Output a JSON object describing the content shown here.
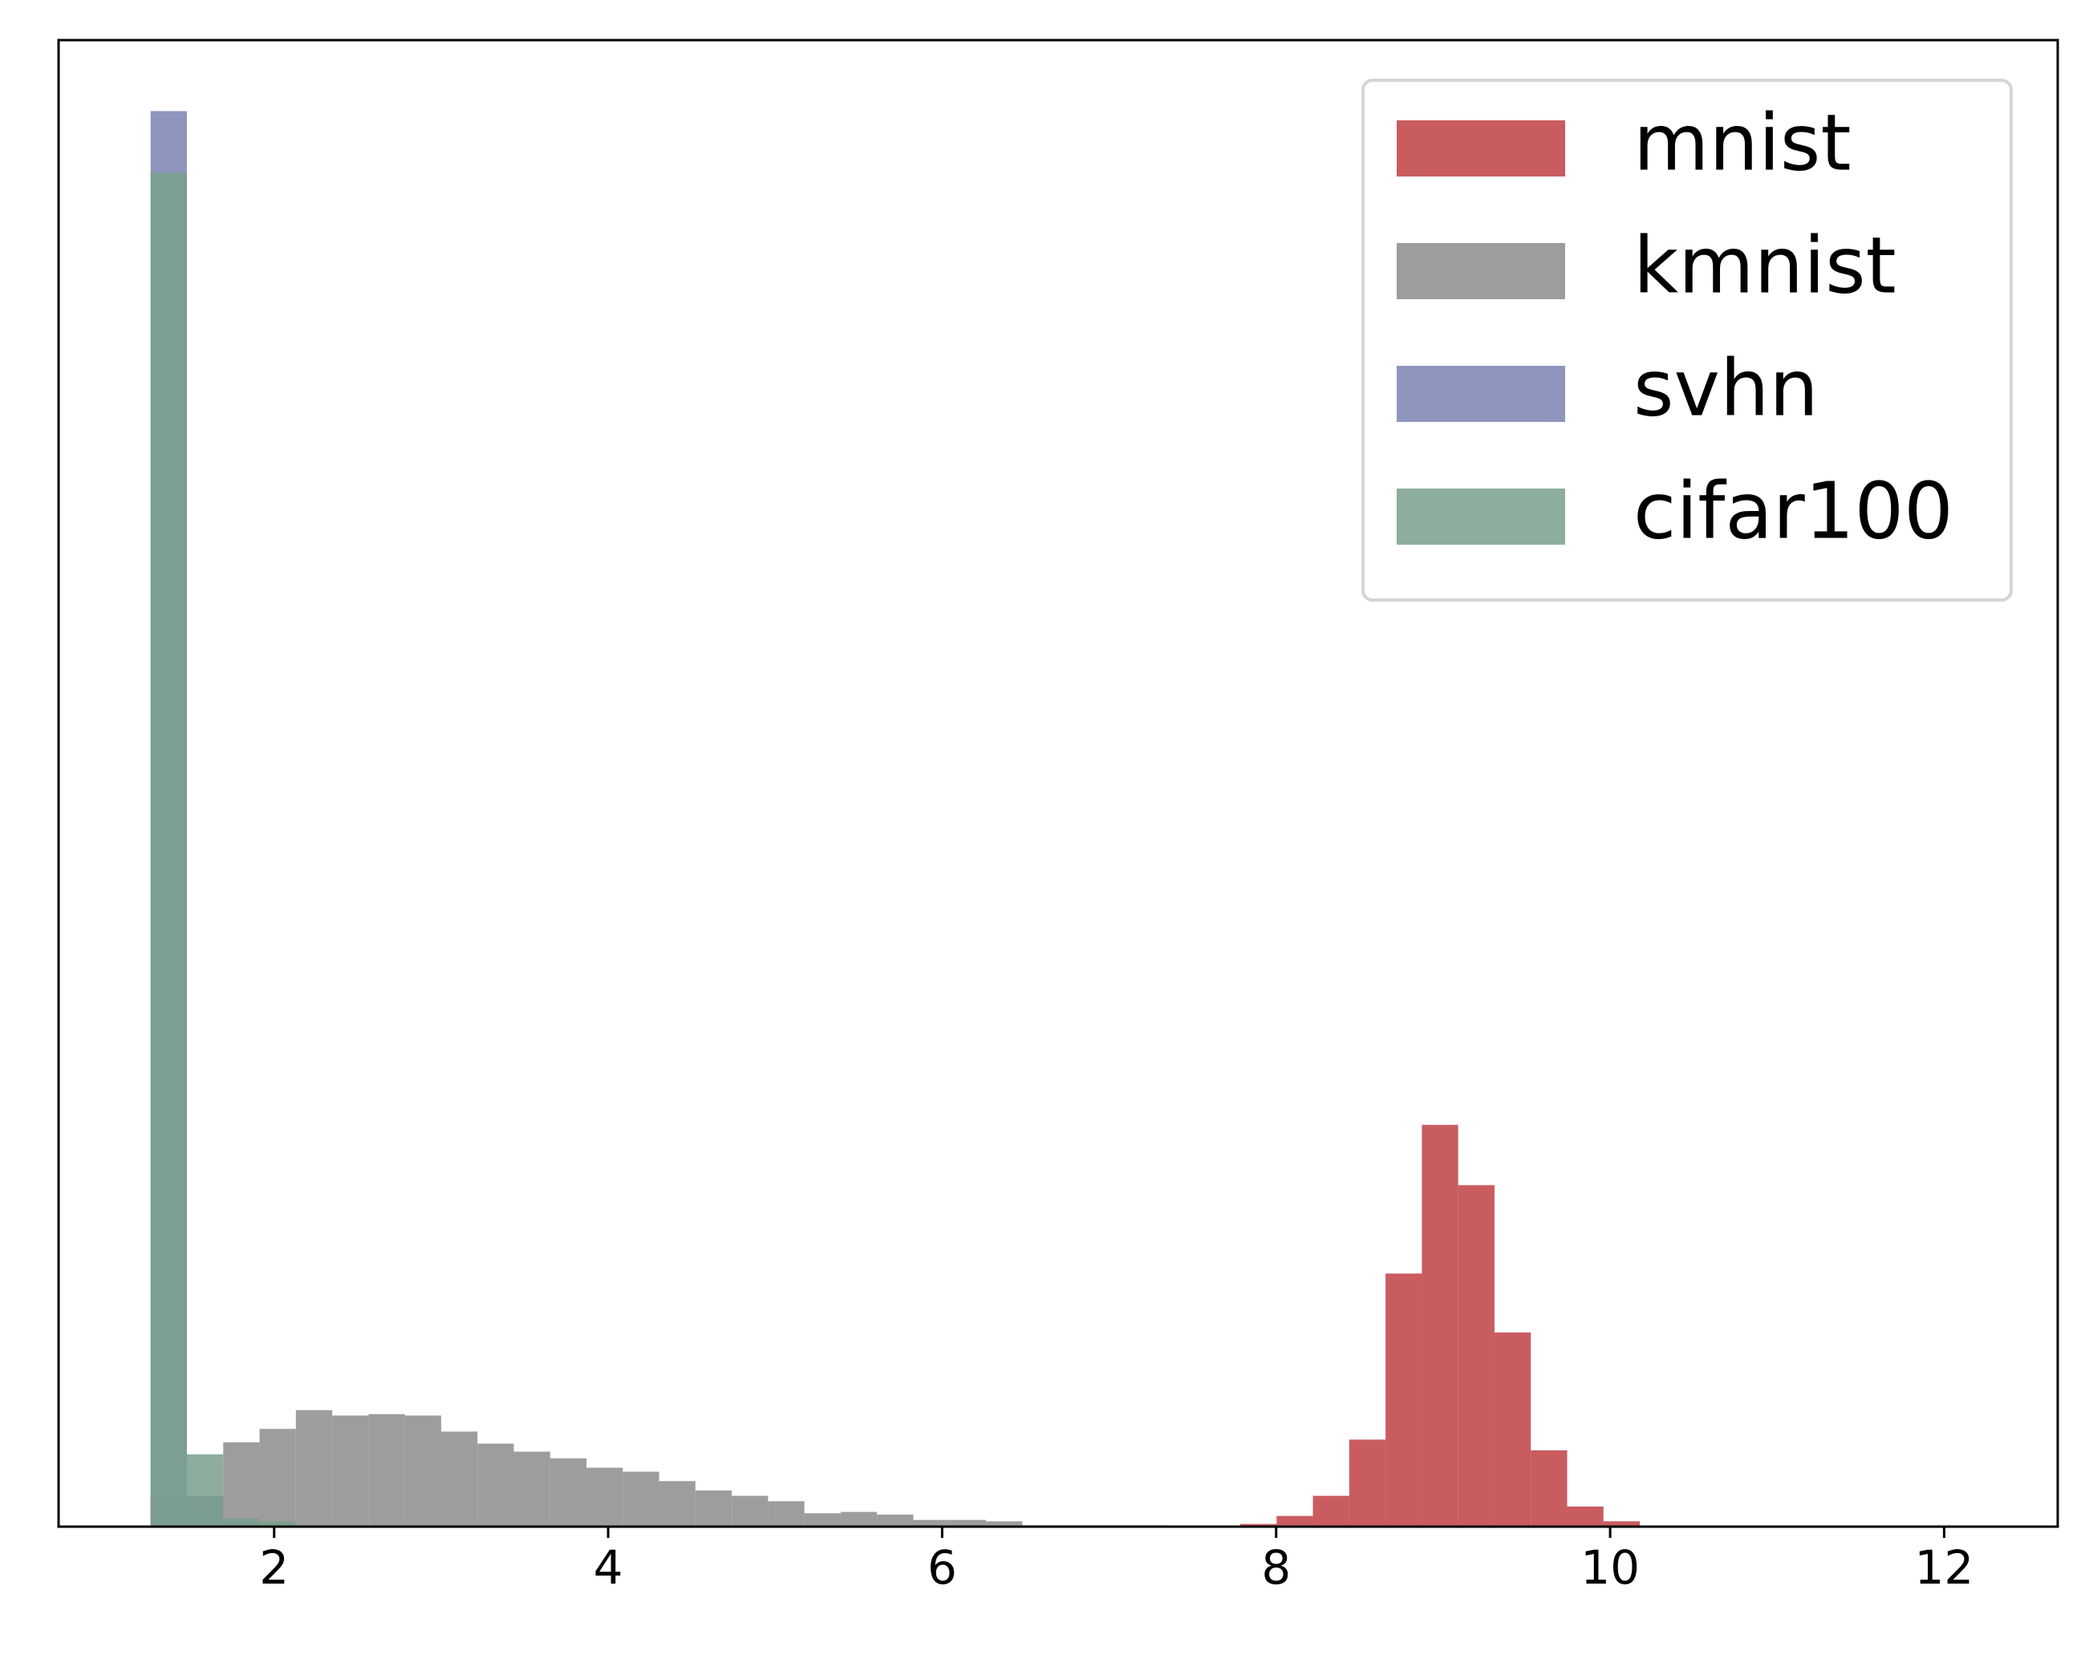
{
  "chart_data": {
    "type": "histogram",
    "bins": [
      1.26,
      1.4775,
      1.695,
      1.9125,
      2.13,
      2.3475,
      2.565,
      2.7825,
      3.0,
      3.2175,
      3.435,
      3.6525,
      3.87,
      4.0875,
      4.305,
      4.5225,
      4.74,
      4.9575,
      5.175,
      5.3925,
      5.61,
      5.8275,
      6.045,
      6.2625,
      6.48,
      6.6975,
      6.915,
      7.1325,
      7.35,
      7.5675,
      7.785,
      8.0025,
      8.22,
      8.4375,
      8.655,
      8.8725,
      9.09,
      9.3075,
      9.525,
      9.7425,
      9.96,
      10.1775,
      10.395,
      10.6125,
      10.83,
      11.0475,
      11.265,
      11.4825,
      11.7,
      11.9175,
      12.135
    ],
    "series": [
      {
        "name": "mnist",
        "color": "#bf4043",
        "values": [
          0,
          0,
          0,
          0,
          0,
          0,
          0,
          0,
          0,
          0,
          0,
          0,
          0,
          0,
          0,
          0,
          0,
          0,
          0,
          0,
          0,
          0,
          0,
          0,
          0,
          0,
          0,
          0,
          0,
          0,
          2,
          8,
          23,
          65,
          189,
          300,
          255,
          145,
          57,
          15,
          4,
          0,
          0,
          0,
          0,
          0,
          0,
          0,
          0,
          0
        ]
      },
      {
        "name": "kmnist",
        "color": "#8c8c8c",
        "values": [
          23,
          23,
          63,
          73,
          87,
          83,
          84,
          83,
          71,
          62,
          56,
          51,
          44,
          41,
          34,
          27,
          23,
          19,
          10,
          11,
          9,
          5,
          5,
          4,
          1,
          1,
          1,
          1,
          0,
          0,
          0,
          0,
          0,
          0,
          0,
          0,
          0,
          0,
          0,
          0,
          0,
          0,
          0,
          0,
          0,
          0,
          0,
          0,
          0,
          0
        ]
      },
      {
        "name": "svhn",
        "color": "#7b83b1",
        "values": [
          1057,
          22,
          3,
          0,
          0,
          0,
          0,
          0,
          0,
          0,
          0,
          0,
          0,
          0,
          0,
          0,
          0,
          0,
          0,
          0,
          0,
          0,
          0,
          0,
          0,
          0,
          0,
          0,
          0,
          0,
          0,
          0,
          0,
          0,
          0,
          0,
          0,
          0,
          0,
          0,
          0,
          0,
          0,
          0,
          0,
          0,
          0,
          0,
          0,
          0
        ]
      },
      {
        "name": "cifar100",
        "color": "#7aa08c",
        "values": [
          1011,
          54,
          6,
          4,
          0,
          0,
          0,
          0,
          0,
          0,
          0,
          0,
          0,
          0,
          0,
          0,
          0,
          0,
          0,
          0,
          0,
          0,
          0,
          0,
          0,
          0,
          0,
          0,
          0,
          0,
          0,
          0,
          0,
          0,
          0,
          0,
          0,
          0,
          0,
          0,
          0,
          0,
          0,
          0,
          0,
          0,
          0,
          0,
          0,
          0
        ]
      }
    ],
    "xlim": [
      0.709,
      12.68
    ],
    "xticks": [
      2,
      4,
      6,
      8,
      10,
      12
    ],
    "ylim": [
      0,
      1110
    ],
    "legend": "upper right"
  }
}
